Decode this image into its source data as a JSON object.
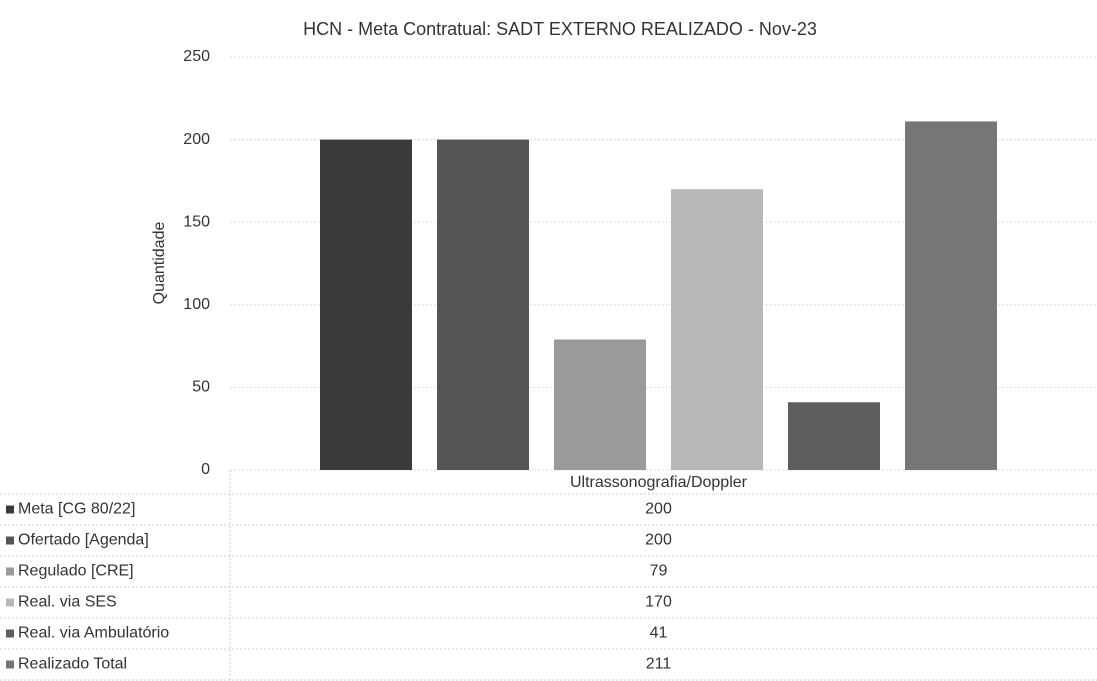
{
  "chart_data": {
    "type": "bar",
    "title": "HCN - Meta Contratual: SADT EXTERNO REALIZADO - Nov-23",
    "y_label": "Quantidade",
    "categories": [
      "Ultrassonografia/Doppler"
    ],
    "series": [
      {
        "name": "Meta [CG 80/22]",
        "color": "#3a3a3a",
        "values": [
          200
        ]
      },
      {
        "name": "Ofertado [Agenda]",
        "color": "#555555",
        "values": [
          200
        ]
      },
      {
        "name": "Regulado [CRE]",
        "color": "#9a9a9a",
        "values": [
          79
        ]
      },
      {
        "name": "Real. via SES",
        "color": "#b8b8b8",
        "values": [
          170
        ]
      },
      {
        "name": "Real. via Ambulatório",
        "color": "#5e5e5e",
        "values": [
          41
        ]
      },
      {
        "name": "Realizado Total",
        "color": "#767676",
        "values": [
          211
        ]
      }
    ],
    "ylim": [
      0,
      250
    ],
    "yticks": [
      0,
      50,
      100,
      150,
      200,
      250
    ],
    "grid": true,
    "data_table": true
  }
}
